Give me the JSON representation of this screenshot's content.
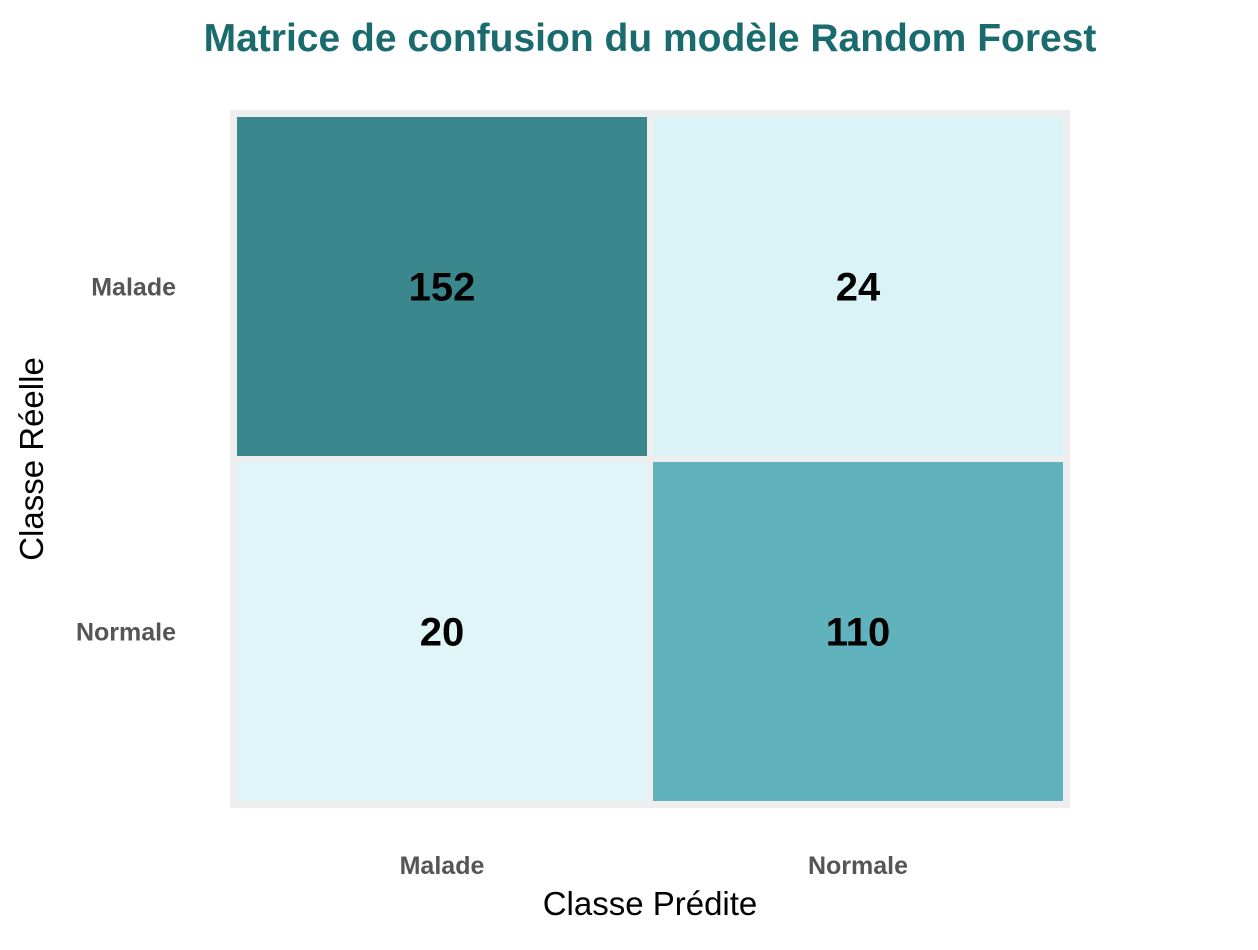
{
  "chart_data": {
    "type": "heatmap",
    "title": "Matrice de confusion du modèle Random Forest",
    "xlabel": "Classe Prédite",
    "ylabel": "Classe Réelle",
    "x_categories": [
      "Malade",
      "Normale"
    ],
    "y_categories": [
      "Malade",
      "Normale"
    ],
    "values": [
      [
        152,
        24
      ],
      [
        20,
        110
      ]
    ],
    "legend": "none",
    "grid": false
  },
  "colors": {
    "title": "#1a6b6e",
    "panel_background": "#eeeeee",
    "scale_low": "#e0f5f8",
    "scale_high": "#3a888e",
    "scale_mid": "#76ccd7"
  }
}
